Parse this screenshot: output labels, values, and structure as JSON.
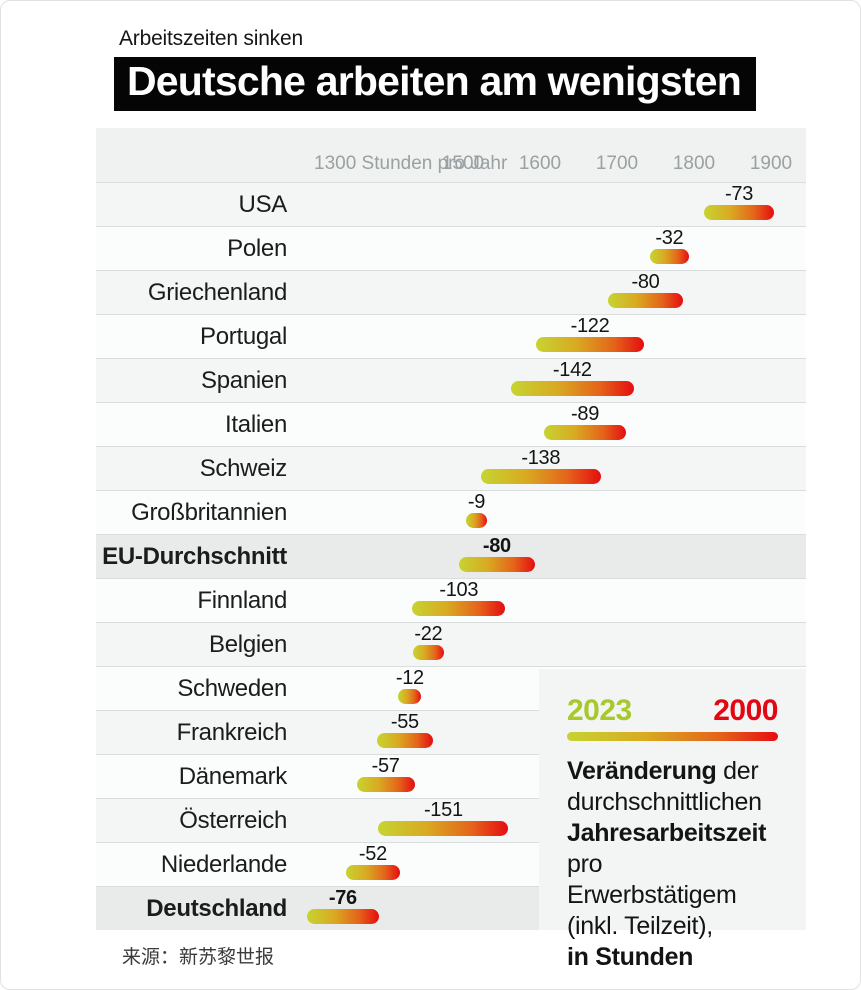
{
  "header": {
    "kicker": "Arbeitszeiten sinken",
    "headline": "Deutsche arbeiten am wenigsten"
  },
  "chart_data": {
    "type": "bar",
    "subtype": "range-dumbbell-gradient",
    "title": "Deutsche arbeiten am wenigsten",
    "kicker": "Arbeitszeiten sinken",
    "xlabel": "Stunden pro Jahr",
    "axis": {
      "min": 1300,
      "max": 1900,
      "gridlines": [
        1300,
        1400,
        1500,
        1600,
        1700,
        1800,
        1900
      ],
      "tick_labels": [
        {
          "value": 1300,
          "label": "1300 Stunden pro Jahr",
          "align": "left"
        },
        {
          "value": 1500,
          "label": "1500",
          "align": "center"
        },
        {
          "value": 1600,
          "label": "1600",
          "align": "center"
        },
        {
          "value": 1700,
          "label": "1700",
          "align": "center"
        },
        {
          "value": 1800,
          "label": "1800",
          "align": "center"
        },
        {
          "value": 1900,
          "label": "1900",
          "align": "center"
        }
      ]
    },
    "series": [
      {
        "name": "2023",
        "color": "#a8c92d"
      },
      {
        "name": "2000",
        "color": "#e30613"
      }
    ],
    "rows": [
      {
        "label": "USA",
        "v2023": 1822,
        "v2000": 1895,
        "change": "-73",
        "emphasis": false
      },
      {
        "label": "Polen",
        "v2023": 1752,
        "v2000": 1784,
        "change": "-32",
        "emphasis": false
      },
      {
        "label": "Griechenland",
        "v2023": 1697,
        "v2000": 1777,
        "change": "-80",
        "emphasis": false
      },
      {
        "label": "Portugal",
        "v2023": 1604,
        "v2000": 1726,
        "change": "-122",
        "emphasis": false
      },
      {
        "label": "Spanien",
        "v2023": 1571,
        "v2000": 1713,
        "change": "-142",
        "emphasis": false
      },
      {
        "label": "Italien",
        "v2023": 1614,
        "v2000": 1703,
        "change": "-89",
        "emphasis": false
      },
      {
        "label": "Schweiz",
        "v2023": 1532,
        "v2000": 1670,
        "change": "-138",
        "emphasis": false
      },
      {
        "label": "Großbritannien",
        "v2023": 1513,
        "v2000": 1522,
        "change": "-9",
        "emphasis": false
      },
      {
        "label": "EU-Durchschnitt",
        "v2023": 1504,
        "v2000": 1584,
        "change": "-80",
        "emphasis": true
      },
      {
        "label": "Finnland",
        "v2023": 1443,
        "v2000": 1546,
        "change": "-103",
        "emphasis": false
      },
      {
        "label": "Belgien",
        "v2023": 1444,
        "v2000": 1466,
        "change": "-22",
        "emphasis": false
      },
      {
        "label": "Schweden",
        "v2023": 1425,
        "v2000": 1437,
        "change": "-12",
        "emphasis": false
      },
      {
        "label": "Frankreich",
        "v2023": 1397,
        "v2000": 1452,
        "change": "-55",
        "emphasis": false
      },
      {
        "label": "Dänemark",
        "v2023": 1371,
        "v2000": 1428,
        "change": "-57",
        "emphasis": false
      },
      {
        "label": "Österreich",
        "v2023": 1399,
        "v2000": 1550,
        "change": "-151",
        "emphasis": false
      },
      {
        "label": "Niederlande",
        "v2023": 1357,
        "v2000": 1409,
        "change": "-52",
        "emphasis": false
      },
      {
        "label": "Deutschland",
        "v2023": 1306,
        "v2000": 1382,
        "change": "-76",
        "emphasis": true
      }
    ],
    "legend": {
      "year_start": "2023",
      "year_end": "2000",
      "description_lines": [
        [
          {
            "t": "Veränderung",
            "b": true
          },
          {
            "t": " der",
            "b": false
          }
        ],
        [
          {
            "t": "durchschnittlichen",
            "b": false
          }
        ],
        [
          {
            "t": "Jahresarbeitszeit",
            "b": true
          }
        ],
        [
          {
            "t": "pro Erwerbstätigem",
            "b": false
          }
        ],
        [
          {
            "t": "(inkl. Teilzeit),",
            "b": false
          }
        ],
        [
          {
            "t": "in Stunden",
            "b": true
          }
        ]
      ]
    },
    "legend_position": "bottom-right overlay",
    "grid": true
  },
  "colors": {
    "gradient_start_2023": "#c6d431",
    "gradient_end_2000": "#e50d11",
    "legend_2023_text": "#a8c92d",
    "legend_2000_text": "#e30613",
    "panel_bg": "#f0f1f1",
    "row_highlight_bg": "#e9ebeb",
    "gridline": "#d9dddd",
    "headline_bg": "#050505",
    "headline_text": "#ffffff"
  },
  "source": "来源：新苏黎世报"
}
